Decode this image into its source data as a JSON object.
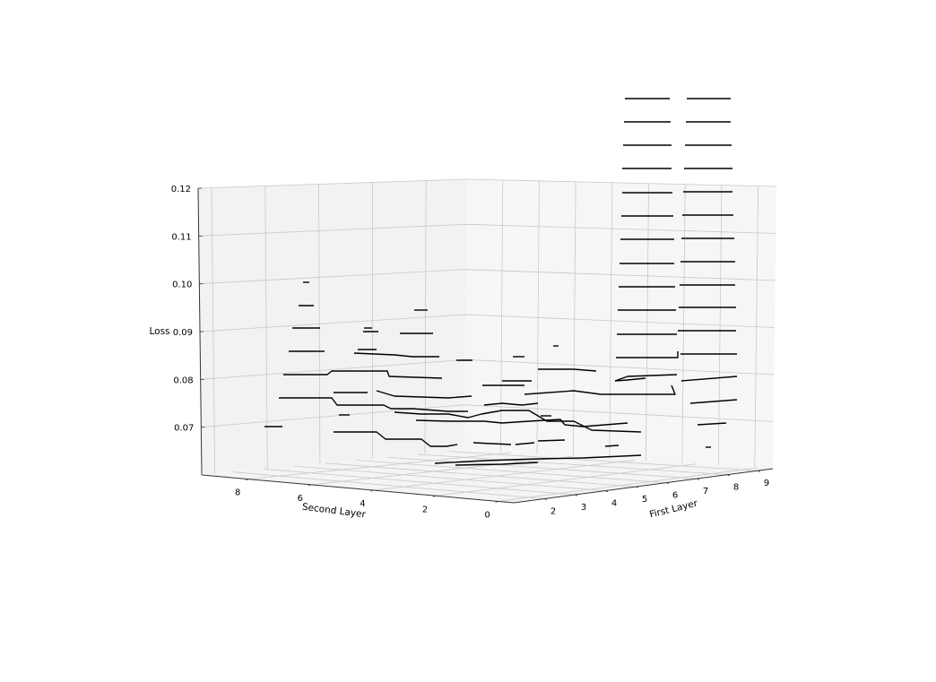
{
  "chart_data": {
    "type": "contour3d",
    "title": "",
    "xlabel": "First Layer",
    "ylabel": "Second Layer",
    "zlabel": "Loss",
    "x_ticks": [
      2,
      3,
      4,
      5,
      6,
      7,
      8,
      9
    ],
    "y_ticks": [
      0,
      2,
      4,
      6,
      8
    ],
    "z_ticks": [
      "0.07",
      "0.08",
      "0.09",
      "0.10",
      "0.11",
      "0.12"
    ],
    "xlim": [
      1,
      9.5
    ],
    "ylim": [
      -0.5,
      9.5
    ],
    "zlim": [
      0.06,
      0.12
    ],
    "grid": true,
    "line_color": "#000000",
    "pane_color": "#f2f2f2",
    "grid_color": "#c8c8c8"
  }
}
